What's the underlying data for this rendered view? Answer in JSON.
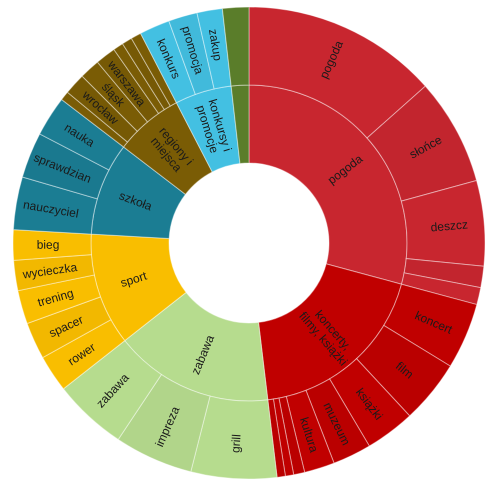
{
  "chart_data": {
    "type": "sunburst",
    "start_angle_deg": 0,
    "direction": "clockwise",
    "categories": [
      {
        "name": "pogoda",
        "color": "#c8262f",
        "children": [
          {
            "name": "pogoda",
            "share": 0.46
          },
          {
            "name": "słońce",
            "share": 0.25
          },
          {
            "name": "deszcz",
            "share": 0.2
          },
          {
            "name": "",
            "share": 0.05
          },
          {
            "name": "",
            "share": 0.04
          }
        ]
      },
      {
        "name": "koncerty, filmy, książki",
        "color": "#c00000",
        "children": [
          {
            "name": "koncert",
            "share": 0.24
          },
          {
            "name": "film",
            "share": 0.23
          },
          {
            "name": "książki",
            "share": 0.18
          },
          {
            "name": "muzeum",
            "share": 0.14
          },
          {
            "name": "kultura",
            "share": 0.11
          },
          {
            "name": "",
            "share": 0.04
          },
          {
            "name": "",
            "share": 0.03
          },
          {
            "name": "",
            "share": 0.03
          }
        ]
      },
      {
        "name": "zabawa",
        "color": "#b6dc8e",
        "children": [
          {
            "name": "grill",
            "share": 0.36
          },
          {
            "name": "impreza",
            "share": 0.33
          },
          {
            "name": "zabawa",
            "share": 0.31
          }
        ]
      },
      {
        "name": "sport",
        "color": "#f9be00",
        "children": [
          {
            "name": "rower",
            "share": 0.22
          },
          {
            "name": "spacer",
            "share": 0.22
          },
          {
            "name": "trening",
            "share": 0.2
          },
          {
            "name": "wycieczka",
            "share": 0.18
          },
          {
            "name": "bieg",
            "share": 0.18
          }
        ]
      },
      {
        "name": "szkoła",
        "color": "#1b7d93",
        "children": [
          {
            "name": "nauczyciel",
            "share": 0.38
          },
          {
            "name": "sprawdzian",
            "share": 0.33
          },
          {
            "name": "nauka",
            "share": 0.29
          }
        ]
      },
      {
        "name": "regiony i miejsca",
        "color": "#7a5c05",
        "children": [
          {
            "name": "",
            "share": 0.09
          },
          {
            "name": "wrocław",
            "share": 0.21
          },
          {
            "name": "śląsk",
            "share": 0.2
          },
          {
            "name": "warszawa",
            "share": 0.2
          },
          {
            "name": "",
            "share": 0.1
          },
          {
            "name": "",
            "share": 0.1
          },
          {
            "name": "",
            "share": 0.1
          }
        ]
      },
      {
        "name": "konkursy i promocje",
        "color": "#43c0e2",
        "children": [
          {
            "name": "konkurs",
            "share": 0.36
          },
          {
            "name": "promocja",
            "share": 0.34
          },
          {
            "name": "zakup",
            "share": 0.3
          }
        ]
      },
      {
        "name": "",
        "color": "#5a7d2a",
        "children": [
          {
            "name": "",
            "share": 1.0
          }
        ]
      }
    ],
    "inner_spans": [
      0.292,
      0.189,
      0.163,
      0.115,
      0.095,
      0.07,
      0.058,
      0.018
    ]
  }
}
